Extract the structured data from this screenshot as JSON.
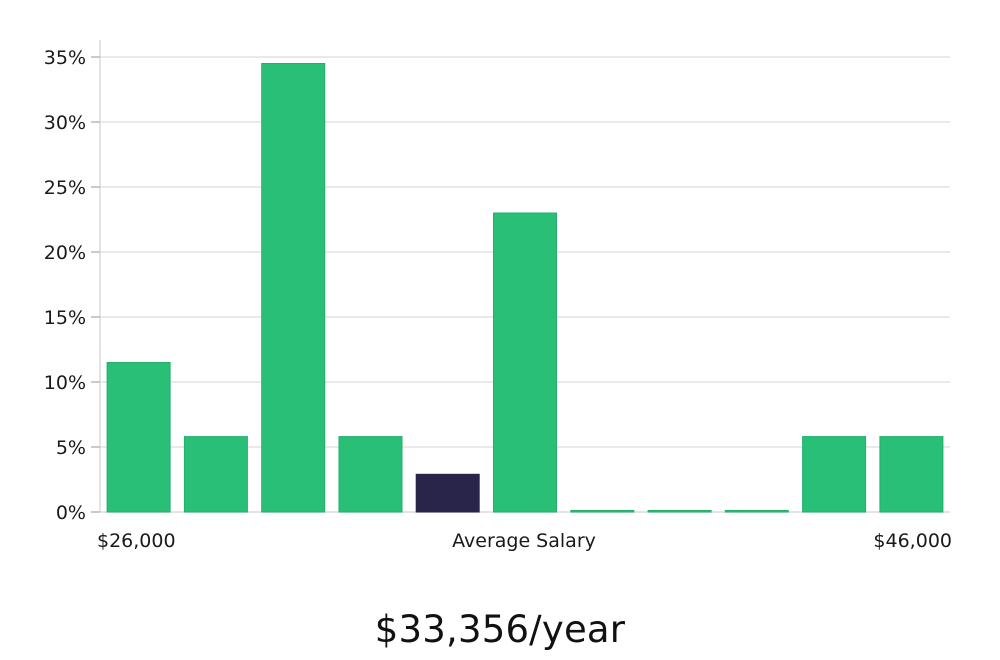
{
  "chart_data": {
    "type": "bar",
    "categories": [
      "1",
      "2",
      "3",
      "4",
      "5",
      "6",
      "7",
      "8",
      "9",
      "10",
      "11"
    ],
    "values": [
      11.5,
      5.8,
      34.5,
      5.8,
      2.9,
      23.0,
      0.0,
      0.0,
      0.0,
      5.8,
      5.8
    ],
    "highlight_index": 4,
    "ylim": [
      0,
      35
    ],
    "yticks": [
      0,
      5,
      10,
      15,
      20,
      25,
      30,
      35
    ],
    "ytick_suffix": "%",
    "grid": true,
    "x_labels": {
      "left": "$26,000",
      "center": "Average Salary",
      "right": "$46,000"
    },
    "colors": {
      "bar": "#2abf77",
      "bar_stroke": "#22b06b",
      "highlight": "#28244a"
    }
  },
  "summary": {
    "salary_text": "$33,356/year"
  }
}
